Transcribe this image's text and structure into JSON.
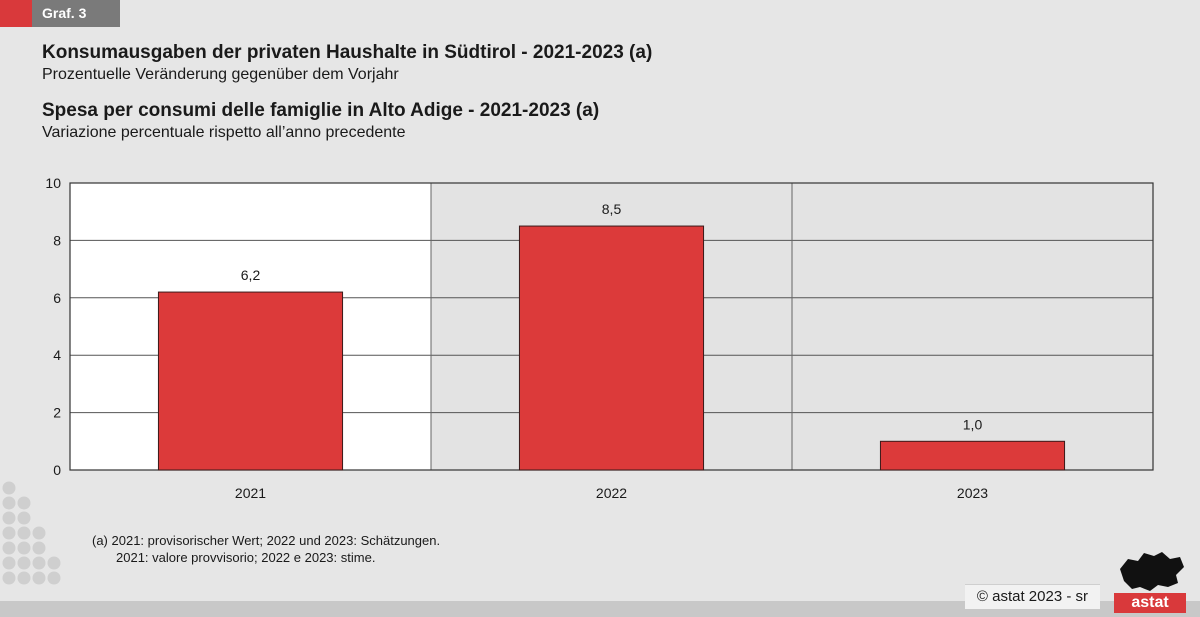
{
  "header": {
    "tag": "Graf. 3",
    "title_de": "Konsumausgaben der privaten Haushalte in Südtirol - 2021-2023 (a)",
    "subtitle_de": "Prozentuelle Veränderung gegenüber dem Vorjahr",
    "title_it": "Spesa per consumi delle famiglie in Alto Adige - 2021-2023 (a)",
    "subtitle_it": "Variazione percentuale rispetto all’anno precedente"
  },
  "notes": {
    "line1": "(a)  2021: provisorischer Wert; 2022 und 2023: Schätzungen.",
    "line2": "2021: valore provvisorio; 2022 e 2023: stime."
  },
  "footer": {
    "copyright": "©  astat 2023 - sr",
    "logo_text": "astat"
  },
  "colors": {
    "bar": "#dc3a3a",
    "accent": "#d9393b",
    "plot_bg": "#e3e3e3",
    "highlight_bg": "#ffffff"
  },
  "chart_data": {
    "type": "bar",
    "categories": [
      "2021",
      "2022",
      "2023"
    ],
    "values": [
      6.2,
      8.5,
      1.0
    ],
    "value_labels": [
      "6,2",
      "8,5",
      "1,0"
    ],
    "ylim": [
      0,
      10
    ],
    "yticks": [
      0,
      2,
      4,
      6,
      8,
      10
    ],
    "grid": true,
    "legend": "none"
  }
}
